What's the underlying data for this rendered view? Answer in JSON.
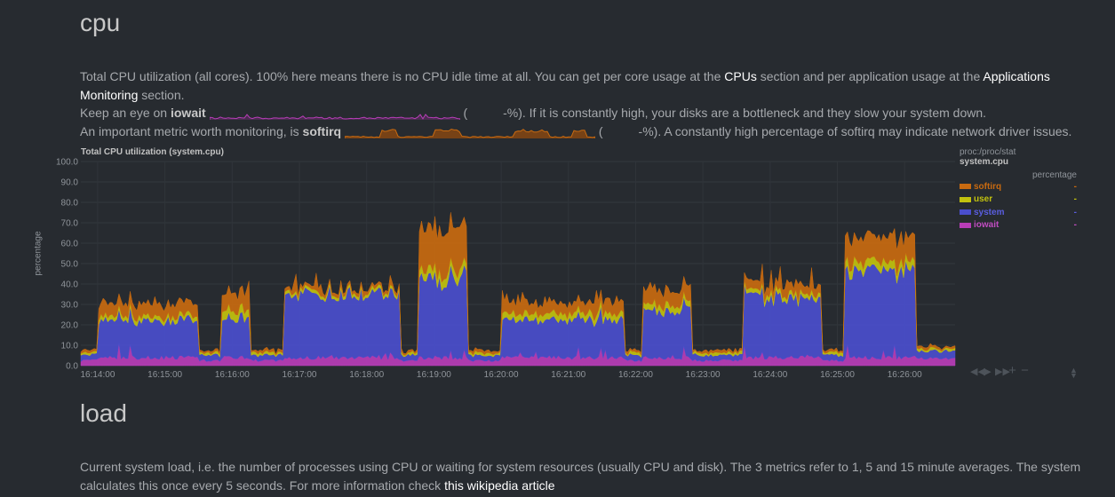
{
  "cpu_section": {
    "title": "cpu",
    "intro": {
      "text1": "Total CPU utilization (all cores). 100% here means there is no CPU idle time at all. You can get per core usage at the ",
      "link1": "CPUs",
      "text2": " section and per application usage at the ",
      "link2": "Applications Monitoring",
      "text3": " section."
    },
    "iowait_line": {
      "prefix": "Keep an eye on ",
      "metric": "iowait",
      "middle": "(",
      "suffix": "-%). If it is constantly high, your disks are a bottleneck and they slow your system down."
    },
    "softirq_line": {
      "prefix": "An important metric worth monitoring, is ",
      "metric": "softirq",
      "middle": "(",
      "suffix": "-%). A constantly high percentage of softirq may indicate network driver issues."
    }
  },
  "chart": {
    "title": "Total CPU utilization (system.cpu)",
    "ylabel": "percentage",
    "context": "proc:/proc/stat",
    "context_id": "system.cpu",
    "units": "percentage",
    "legend": [
      {
        "name": "softirq",
        "value": "-",
        "color": "#c86a10"
      },
      {
        "name": "user",
        "value": "-",
        "color": "#c2c20e"
      },
      {
        "name": "system",
        "value": "-",
        "color": "#4a4ecd"
      },
      {
        "name": "iowait",
        "value": "-",
        "color": "#b83db8"
      }
    ],
    "toolbox": {
      "prev": "◀◀",
      "play": "▶",
      "next": "▶▶",
      "zoom_in": "+",
      "zoom_out": "−"
    }
  },
  "chart_data": {
    "type": "area",
    "title": "Total CPU utilization (system.cpu)",
    "ylabel": "percentage",
    "ylim": [
      0,
      100
    ],
    "yticks": [
      "100.0",
      "90.0",
      "80.0",
      "70.0",
      "60.0",
      "50.0",
      "40.0",
      "30.0",
      "20.0",
      "10.0",
      "0.0"
    ],
    "xticks": [
      "16:14:00",
      "16:15:00",
      "16:16:00",
      "16:17:00",
      "16:18:00",
      "16:19:00",
      "16:20:00",
      "16:21:00",
      "16:22:00",
      "16:23:00",
      "16:24:00",
      "16:25:00",
      "16:26:00"
    ],
    "stacking_order": [
      "iowait",
      "system",
      "user",
      "softirq"
    ],
    "time_range": [
      "16:13:45",
      "16:26:45"
    ],
    "segments": [
      {
        "start": "16:13:45",
        "end": "16:14:00",
        "iowait": 2,
        "system": 2,
        "user": 0.5,
        "softirq": 0.5
      },
      {
        "start": "16:14:00",
        "end": "16:15:30",
        "iowait": 3,
        "system": 18,
        "user": 2,
        "softirq": 6
      },
      {
        "start": "16:15:30",
        "end": "16:15:50",
        "iowait": 2,
        "system": 2,
        "user": 0.5,
        "softirq": 0.5
      },
      {
        "start": "16:15:50",
        "end": "16:16:15",
        "iowait": 3,
        "system": 20,
        "user": 4,
        "softirq": 8
      },
      {
        "start": "16:16:15",
        "end": "16:16:45",
        "iowait": 2,
        "system": 2,
        "user": 0.5,
        "softirq": 0.5
      },
      {
        "start": "16:16:45",
        "end": "16:18:30",
        "iowait": 3,
        "system": 31,
        "user": 1.5,
        "softirq": 1.5
      },
      {
        "start": "16:18:30",
        "end": "16:18:45",
        "iowait": 2,
        "system": 2,
        "user": 0.5,
        "softirq": 0.5
      },
      {
        "start": "16:18:45",
        "end": "16:19:30",
        "iowait": 3,
        "system": 38,
        "user": 4,
        "softirq": 20
      },
      {
        "start": "16:19:30",
        "end": "16:20:00",
        "iowait": 2,
        "system": 2,
        "user": 0.5,
        "softirq": 0.5
      },
      {
        "start": "16:20:00",
        "end": "16:21:50",
        "iowait": 3,
        "system": 18,
        "user": 3,
        "softirq": 5
      },
      {
        "start": "16:21:50",
        "end": "16:22:05",
        "iowait": 2,
        "system": 2,
        "user": 0.5,
        "softirq": 0.5
      },
      {
        "start": "16:22:05",
        "end": "16:22:50",
        "iowait": 3,
        "system": 23,
        "user": 3,
        "softirq": 7
      },
      {
        "start": "16:22:50",
        "end": "16:23:35",
        "iowait": 2,
        "system": 2,
        "user": 0.5,
        "softirq": 0.5
      },
      {
        "start": "16:23:35",
        "end": "16:24:45",
        "iowait": 3,
        "system": 29,
        "user": 2,
        "softirq": 4
      },
      {
        "start": "16:24:45",
        "end": "16:25:05",
        "iowait": 2,
        "system": 2,
        "user": 0.5,
        "softirq": 0.5
      },
      {
        "start": "16:25:05",
        "end": "16:26:10",
        "iowait": 3,
        "system": 42,
        "user": 4,
        "softirq": 12
      },
      {
        "start": "16:26:10",
        "end": "16:26:45",
        "iowait": 3,
        "system": 3,
        "user": 0.5,
        "softirq": 0.5
      }
    ],
    "grid": true,
    "legend_position": "right"
  }
}
